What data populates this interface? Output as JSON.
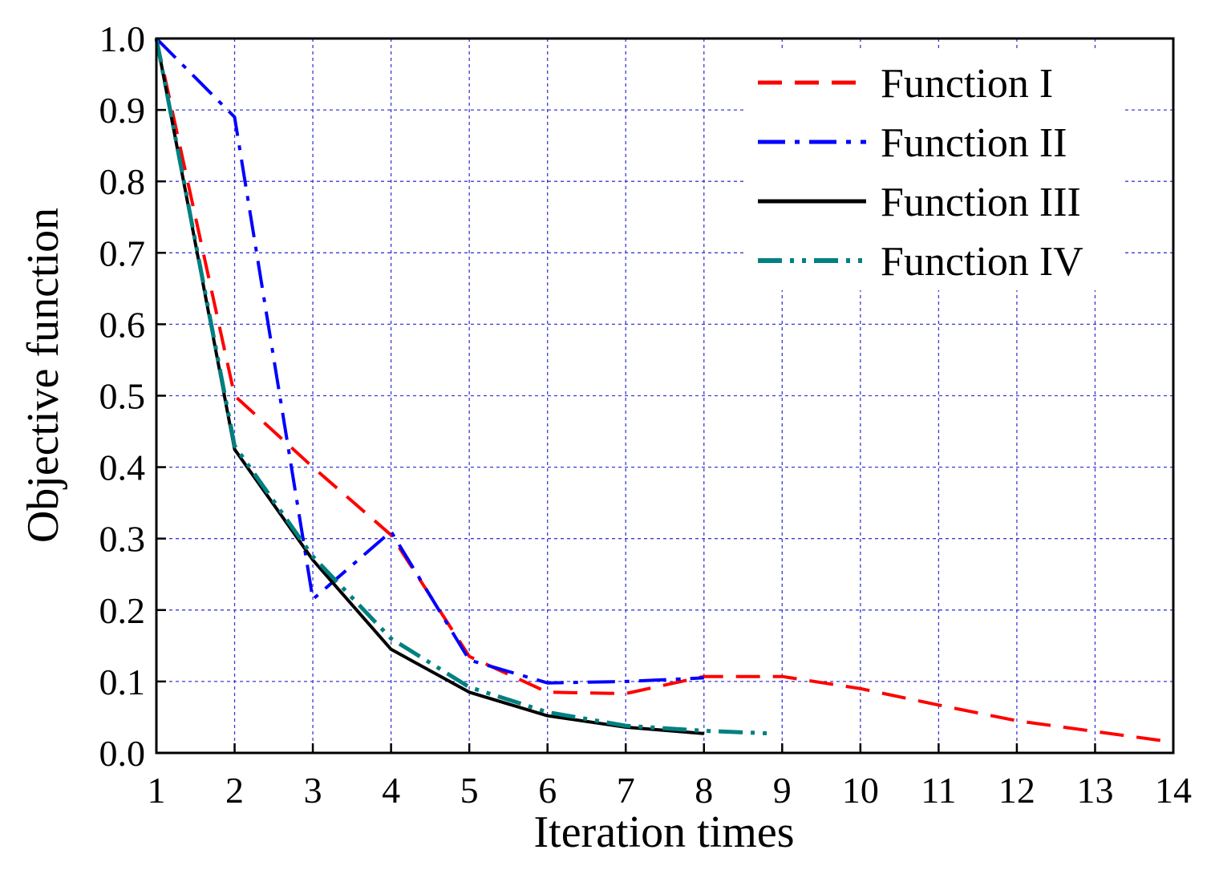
{
  "chart_data": {
    "type": "line",
    "title": "",
    "xlabel": "Iteration times",
    "ylabel": "Objective function",
    "xlim": [
      1,
      14
    ],
    "ylim": [
      0.0,
      1.0
    ],
    "x_ticks": [
      "1",
      "2",
      "3",
      "4",
      "5",
      "6",
      "7",
      "8",
      "9",
      "10",
      "11",
      "12",
      "13",
      "14"
    ],
    "y_ticks": [
      "0.0",
      "0.1",
      "0.2",
      "0.3",
      "0.4",
      "0.5",
      "0.6",
      "0.7",
      "0.8",
      "0.9",
      "1.0"
    ],
    "grid": true,
    "legend_position": "top-right",
    "series": [
      {
        "name": "Function I",
        "color": "#ff0000",
        "style": "dashed",
        "x": [
          1,
          2,
          3,
          4,
          5,
          6,
          7,
          8,
          9,
          10,
          11,
          12,
          13,
          14
        ],
        "y": [
          1.0,
          0.5,
          0.4,
          0.305,
          0.135,
          0.085,
          0.083,
          0.107,
          0.107,
          0.09,
          0.067,
          0.045,
          0.03,
          0.015
        ]
      },
      {
        "name": "Function II",
        "color": "#0000ff",
        "style": "dash-dot",
        "x": [
          1,
          2,
          3,
          4,
          5,
          6,
          7,
          8
        ],
        "y": [
          1.0,
          0.89,
          0.215,
          0.31,
          0.13,
          0.098,
          0.1,
          0.105
        ]
      },
      {
        "name": "Function III",
        "color": "#000000",
        "style": "solid",
        "x": [
          1,
          2,
          3,
          4,
          5,
          6,
          7,
          8
        ],
        "y": [
          1.0,
          0.425,
          0.27,
          0.145,
          0.085,
          0.052,
          0.036,
          0.027
        ]
      },
      {
        "name": "Function IV",
        "color": "#008080",
        "style": "dash-dot-dot",
        "x": [
          1,
          2,
          3,
          4,
          5,
          6,
          7,
          8,
          8.9
        ],
        "y": [
          1.0,
          0.43,
          0.275,
          0.16,
          0.092,
          0.057,
          0.038,
          0.031,
          0.027
        ]
      }
    ]
  }
}
